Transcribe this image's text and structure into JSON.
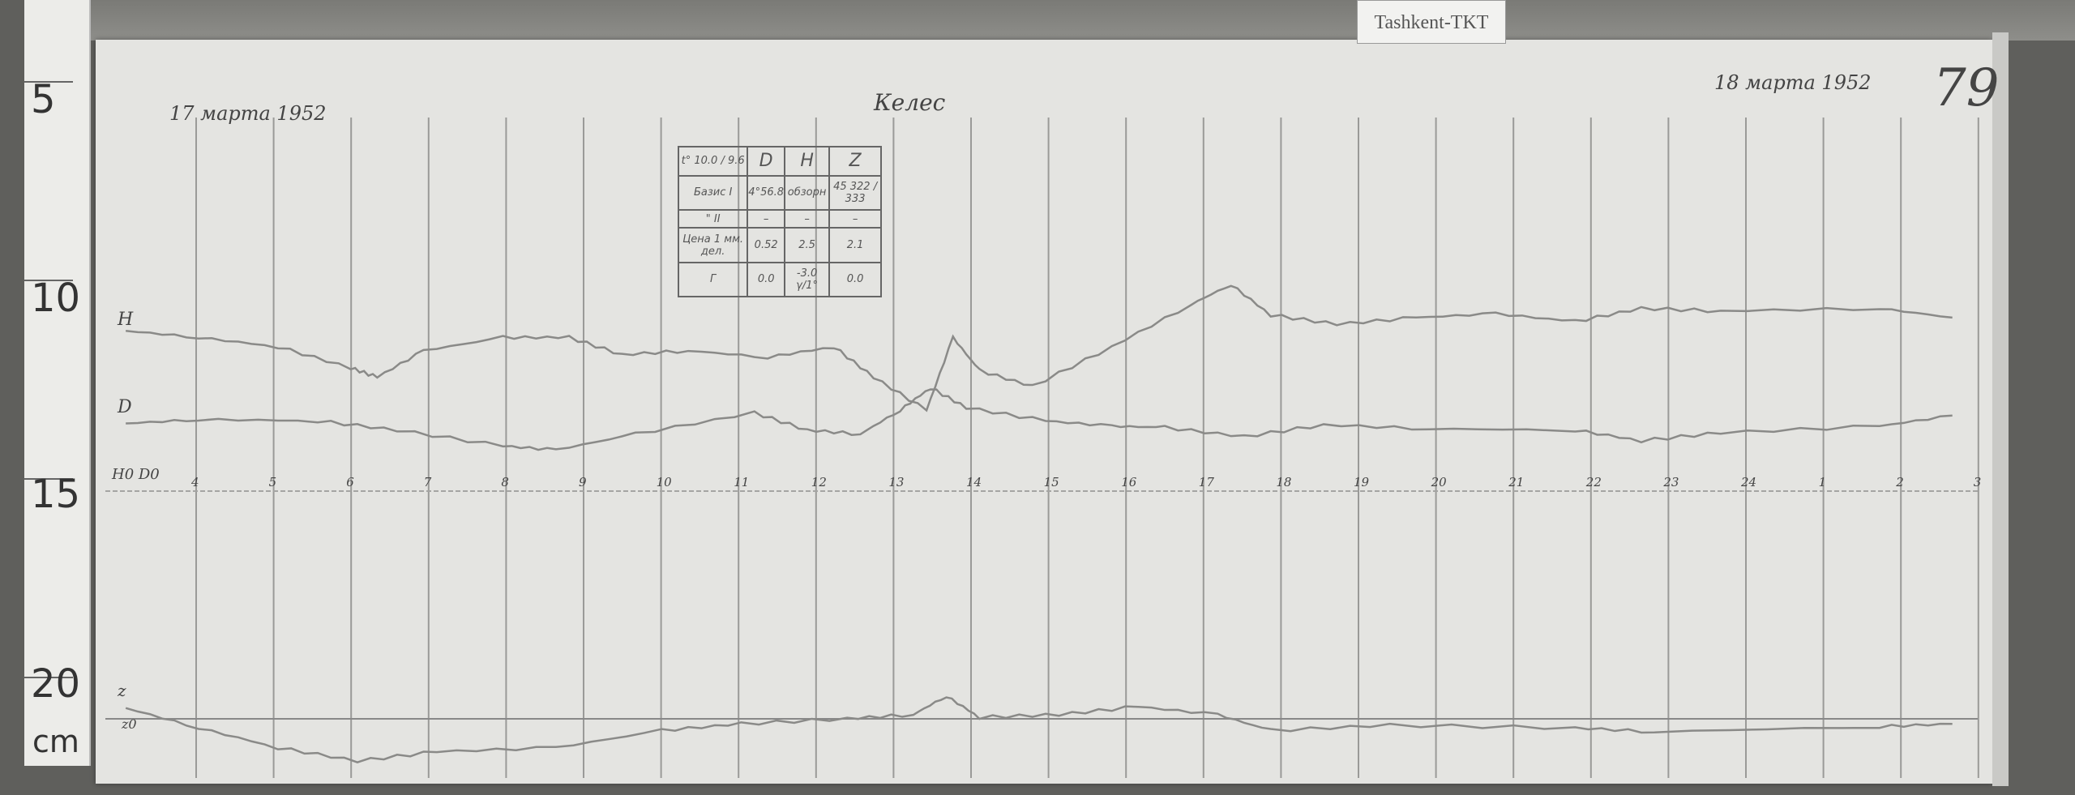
{
  "label_tag": "Tashkent-TKT",
  "ruler": {
    "marks": [
      "5",
      "10",
      "15",
      "20"
    ],
    "unit": "cm"
  },
  "sheet_number": "79",
  "station_handwritten": "Келес",
  "date_start": "17 марта 1952",
  "date_end": "18 марта 1952",
  "trace_labels": {
    "h": "H",
    "d": "D",
    "baseline": "H0 D0",
    "z": "z",
    "z0": "z0"
  },
  "hour_labels": [
    "4",
    "5",
    "6",
    "7",
    "8",
    "9",
    "10",
    "11",
    "12",
    "13",
    "14",
    "15",
    "16",
    "17",
    "18",
    "19",
    "20",
    "21",
    "22",
    "23",
    "24",
    "1",
    "2",
    "3"
  ],
  "table": {
    "header": [
      "t° 10.0 / 9.6",
      "D",
      "H",
      "Z"
    ],
    "rows": [
      [
        "Базис I",
        "4°56.8",
        "обзорн",
        "45 322 / 333"
      ],
      [
        "\" II",
        "–",
        "–",
        "–"
      ],
      [
        "Цена 1 мм. дел.",
        "0.52",
        "2.5",
        "2.1"
      ],
      [
        "Г",
        "0.0",
        "-3.0 γ/1°",
        "0.0"
      ]
    ]
  },
  "colors": {
    "paper": "#e4e4e1",
    "trace": "#8a8a88",
    "background": "#5f5f5c"
  }
}
